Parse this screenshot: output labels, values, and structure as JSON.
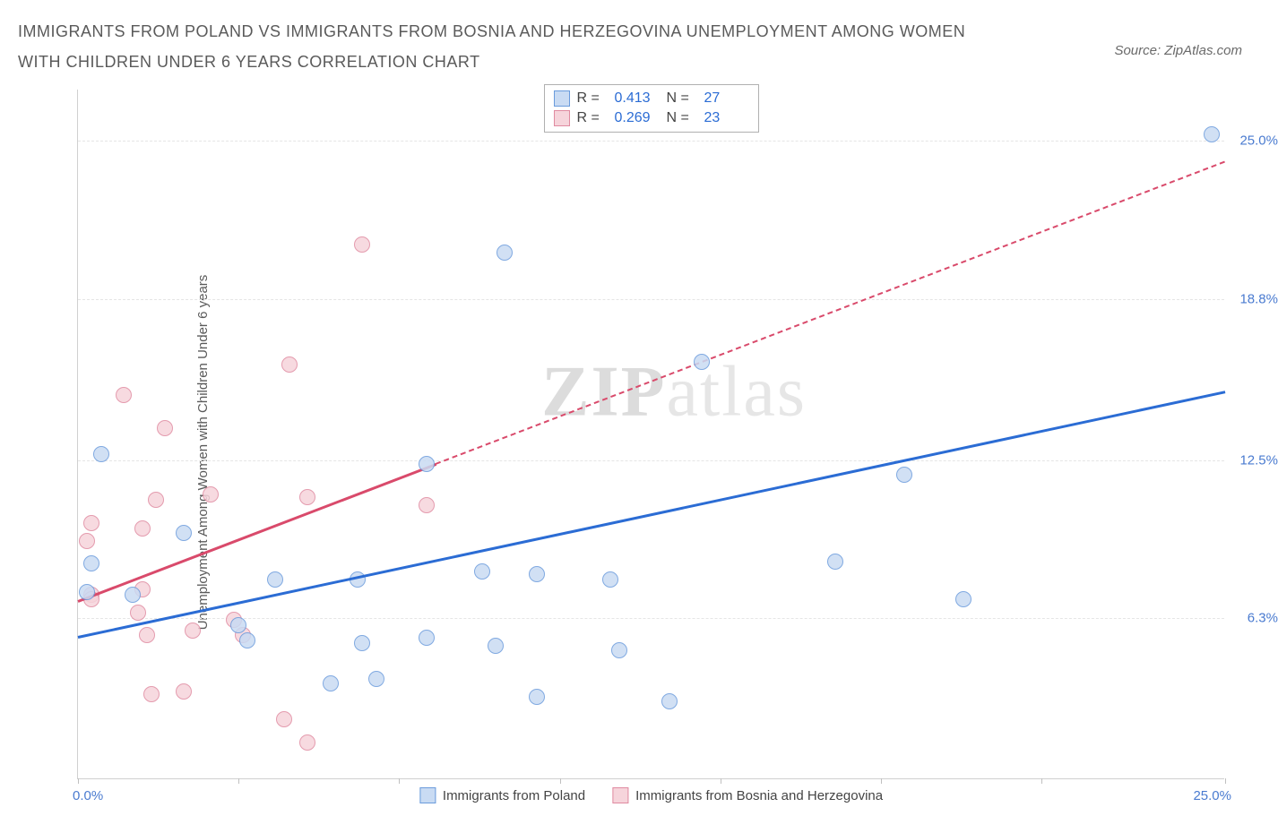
{
  "header": {
    "title": "IMMIGRANTS FROM POLAND VS IMMIGRANTS FROM BOSNIA AND HERZEGOVINA UNEMPLOYMENT AMONG WOMEN WITH CHILDREN UNDER 6 YEARS CORRELATION CHART",
    "source_label": "Source: ZipAtlas.com"
  },
  "watermark": {
    "zip": "ZIP",
    "atlas": "atlas"
  },
  "chart": {
    "type": "scatter",
    "ylabel": "Unemployment Among Women with Children Under 6 years",
    "xlim": [
      0,
      25
    ],
    "ylim": [
      0,
      27
    ],
    "xtick_positions": [
      0,
      3.5,
      7,
      10.5,
      14,
      17.5,
      21,
      25
    ],
    "x_axis_labels": {
      "min": "0.0%",
      "max": "25.0%"
    },
    "y_gridlines": [
      {
        "v": 6.3,
        "label": "6.3%"
      },
      {
        "v": 12.5,
        "label": "12.5%"
      },
      {
        "v": 18.8,
        "label": "18.8%"
      },
      {
        "v": 25.0,
        "label": "25.0%"
      }
    ],
    "background_color": "#ffffff",
    "grid_color": "#e5e5e5",
    "axis_color": "#d0d0d0",
    "tick_label_color": "#4a7bd0",
    "series": {
      "poland": {
        "label": "Immigrants from Poland",
        "fill": "#c9dbf3",
        "stroke": "#6a9bdc",
        "marker_radius": 9,
        "marker_opacity": 0.85,
        "R": "0.413",
        "N": "27",
        "trend": {
          "x1": 0,
          "y1": 5.6,
          "x2": 25,
          "y2": 15.2,
          "color": "#2b6cd4",
          "dash_after_x": 100
        },
        "points": [
          [
            0.5,
            12.7
          ],
          [
            0.3,
            8.4
          ],
          [
            2.3,
            9.6
          ],
          [
            1.2,
            7.2
          ],
          [
            3.5,
            6.0
          ],
          [
            3.7,
            5.4
          ],
          [
            4.3,
            7.8
          ],
          [
            5.5,
            3.7
          ],
          [
            6.1,
            7.8
          ],
          [
            6.5,
            3.9
          ],
          [
            6.2,
            5.3
          ],
          [
            7.6,
            5.5
          ],
          [
            7.6,
            12.3
          ],
          [
            8.8,
            8.1
          ],
          [
            9.1,
            5.2
          ],
          [
            9.3,
            20.6
          ],
          [
            10.0,
            8.0
          ],
          [
            10.0,
            3.2
          ],
          [
            11.6,
            7.8
          ],
          [
            11.8,
            5.0
          ],
          [
            12.9,
            3.0
          ],
          [
            13.6,
            16.3
          ],
          [
            16.5,
            8.5
          ],
          [
            18.0,
            11.9
          ],
          [
            19.3,
            7.0
          ],
          [
            24.7,
            25.2
          ],
          [
            0.2,
            7.3
          ]
        ]
      },
      "bosnia": {
        "label": "Immigrants from Bosnia and Herzegovina",
        "fill": "#f6d4db",
        "stroke": "#e08aa0",
        "marker_radius": 9,
        "marker_opacity": 0.85,
        "R": "0.269",
        "N": "23",
        "trend": {
          "x1": 0,
          "y1": 7.0,
          "x2": 25,
          "y2": 24.2,
          "color": "#d94a6b",
          "dash_after_x": 7.8
        },
        "points": [
          [
            0.3,
            7.2
          ],
          [
            0.2,
            9.3
          ],
          [
            0.3,
            10.0
          ],
          [
            0.3,
            7.0
          ],
          [
            1.0,
            15.0
          ],
          [
            1.3,
            6.5
          ],
          [
            1.4,
            9.8
          ],
          [
            1.4,
            7.4
          ],
          [
            1.5,
            5.6
          ],
          [
            1.6,
            3.3
          ],
          [
            1.7,
            10.9
          ],
          [
            1.9,
            13.7
          ],
          [
            2.3,
            3.4
          ],
          [
            2.5,
            5.8
          ],
          [
            2.9,
            11.1
          ],
          [
            3.4,
            6.2
          ],
          [
            3.6,
            5.6
          ],
          [
            4.5,
            2.3
          ],
          [
            4.6,
            16.2
          ],
          [
            5.0,
            1.4
          ],
          [
            5.0,
            11.0
          ],
          [
            6.2,
            20.9
          ],
          [
            7.6,
            10.7
          ]
        ]
      }
    },
    "legend_top": {
      "r_label": "R =",
      "n_label": "N ="
    }
  }
}
